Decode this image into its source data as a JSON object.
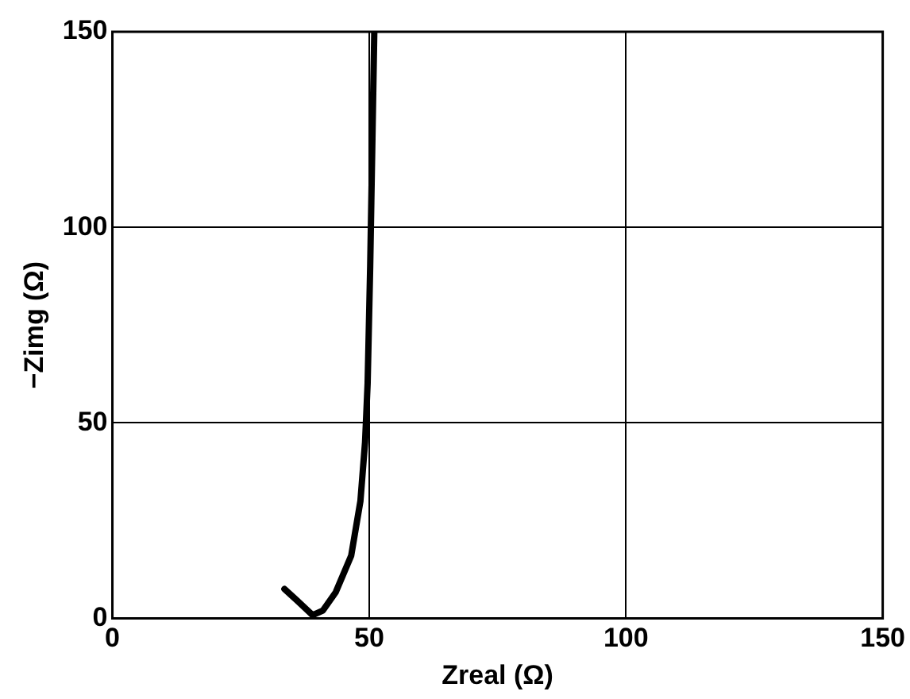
{
  "chart_data": {
    "type": "line",
    "xlabel": "Zreal (Ω)",
    "ylabel": "−Zimg (Ω)",
    "x": [
      33.5,
      36,
      39,
      41,
      43.5,
      46.5,
      48.3,
      49.2,
      49.7,
      50.2,
      50.6,
      51
    ],
    "series": [
      {
        "color": "#000000",
        "values": [
          7.5,
          4.5,
          0.8,
          2,
          6.7,
          16,
          30,
          45,
          60,
          90,
          120,
          150
        ]
      }
    ],
    "xlim": [
      0,
      150
    ],
    "xticks": [
      0,
      50,
      100,
      150
    ],
    "ylim": [
      0,
      150
    ],
    "yticks": [
      0,
      50,
      100,
      150
    ],
    "grid": true,
    "legend": false,
    "marker": "none",
    "line_style": "solid"
  }
}
